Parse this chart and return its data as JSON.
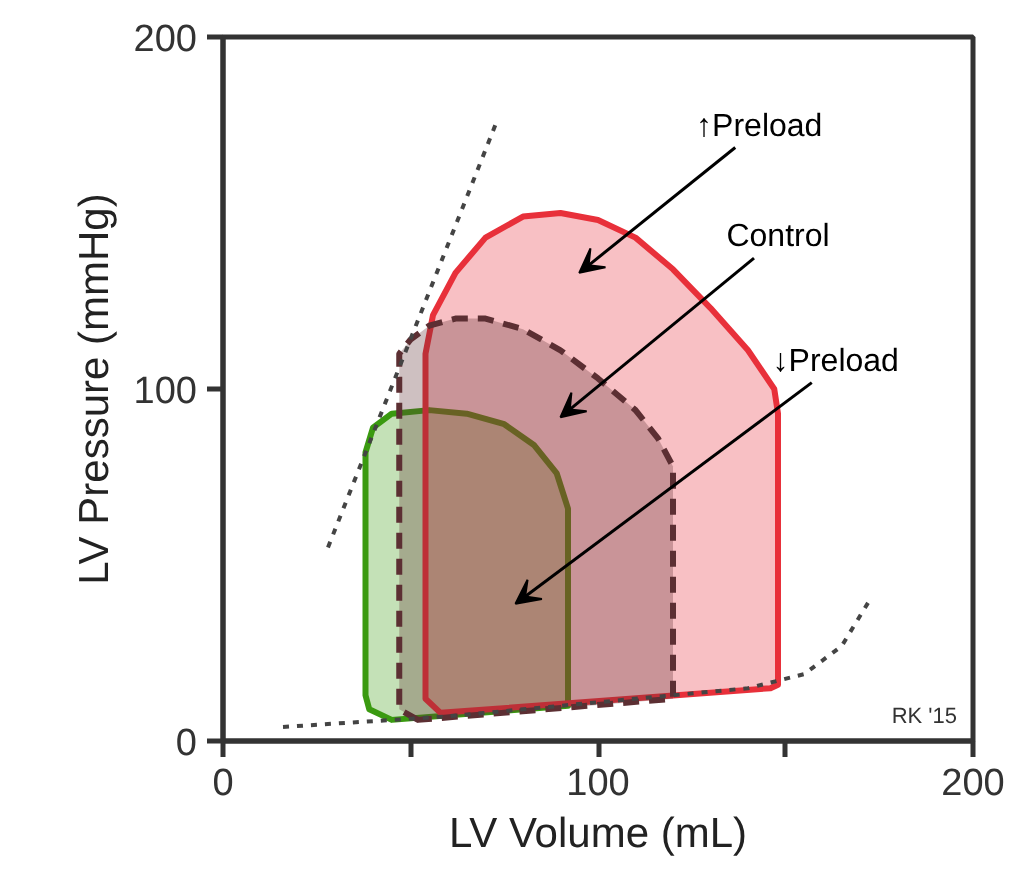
{
  "chart_data": {
    "type": "area",
    "xlabel": "LV Volume (mL)",
    "ylabel": "LV Pressure (mmHg)",
    "xlim": [
      0,
      200
    ],
    "ylim": [
      0,
      200
    ],
    "xticks": [
      0,
      {
        "value": 50,
        "label": null
      },
      100,
      {
        "value": 150,
        "label": null
      },
      200
    ],
    "yticks": [
      0,
      100,
      200
    ],
    "grid": false,
    "series": [
      {
        "color": "#3a9a10",
        "line_style": "solid",
        "x": [
          45,
          39,
          38,
          38,
          40,
          45,
          55,
          65,
          75,
          83,
          89,
          92,
          92,
          45
        ],
        "values": [
          6,
          9,
          13,
          82,
          89,
          93,
          94,
          93,
          90,
          84,
          76,
          66,
          10,
          6
        ]
      },
      {
        "color": "#e8303a",
        "line_style": "solid",
        "x": [
          58,
          54,
          54,
          56,
          62,
          70,
          80,
          90,
          100,
          110,
          120,
          130,
          140,
          147,
          148,
          148,
          146,
          58
        ],
        "values": [
          8,
          12,
          110,
          121,
          133,
          143,
          149,
          150,
          148,
          143,
          134,
          123,
          111,
          100,
          93,
          16,
          15,
          8
        ]
      },
      {
        "color": "#5c2f33",
        "line_style": "dashed",
        "x": [
          52,
          47,
          47,
          50,
          55,
          62,
          70,
          80,
          90,
          100,
          110,
          116,
          120,
          120,
          52
        ],
        "values": [
          6,
          9,
          110,
          114,
          118,
          120,
          120,
          117,
          111,
          103,
          94,
          86,
          78,
          12,
          6
        ]
      },
      {
        "type": "line",
        "color": "#444444",
        "line_style": "dotted",
        "x": [
          28,
          73
        ],
        "values": [
          55,
          176
        ]
      },
      {
        "type": "line",
        "color": "#444444",
        "line_style": "dotted",
        "x": [
          16,
          60,
          100,
          140,
          155,
          165,
          173
        ],
        "values": [
          4,
          7,
          11,
          15,
          19,
          27,
          41
        ]
      }
    ],
    "annotations": [
      "↑Preload",
      "Control",
      "↓Preload",
      "RK '15"
    ]
  }
}
